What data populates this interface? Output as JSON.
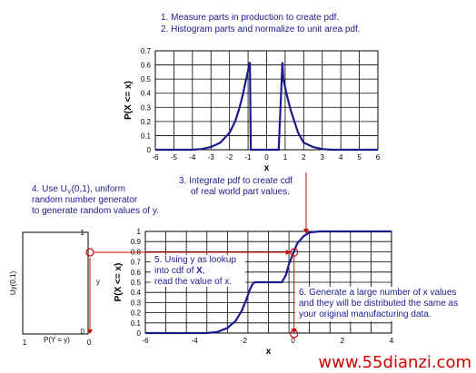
{
  "notes": {
    "n1": "1.  Measure parts in production to create pdf.",
    "n2": "2.  Histogram parts and normalize to unit area pdf.",
    "n3a": "3.  Integrate pdf to create cdf",
    "n3b": "of real world part values.",
    "n4a": "4.  Use U",
    "n4sub": "Y",
    "n4b": "(0,1), uniform",
    "n4c": "random number generator",
    "n4d": "to generate random values of y.",
    "n5a": "5.  Using y as lookup",
    "n5b": "into cdf of ",
    "n5bold": "X",
    "n5c": ",",
    "n5d": "read the value of x.",
    "n6a": "6.  Generate a large number of x values",
    "n6b": "and they will be distributed the same as",
    "n6c": "your original manufacturing data."
  },
  "chart_data": [
    {
      "type": "line",
      "title": "",
      "xlabel": "x",
      "ylabel": "P(X <= x)",
      "xlim": [
        -6,
        6
      ],
      "ylim": [
        0,
        0.7
      ],
      "x_ticks": [
        "-6",
        "-5",
        "-4",
        "-3",
        "-2",
        "-1",
        "0",
        "1",
        "2",
        "3",
        "4",
        "5",
        "6"
      ],
      "y_ticks": [
        "0",
        "0.1",
        "0.2",
        "0.3",
        "0.4",
        "0.5",
        "0.6",
        "0.7"
      ],
      "grid": true,
      "series": [
        {
          "x": [
            -6,
            -4,
            -3.5,
            -3,
            -2.5,
            -2,
            -1.7,
            -1.5,
            -1.3,
            -1.1,
            -0.9,
            -0.85,
            -0.65,
            0.65,
            0.85,
            0.9,
            1.1,
            1.3,
            1.5,
            1.7,
            2,
            2.5,
            3,
            3.5,
            4,
            6
          ],
          "y": [
            0,
            0,
            0.005,
            0.02,
            0.05,
            0.12,
            0.2,
            0.28,
            0.38,
            0.5,
            0.62,
            0,
            0,
            0,
            0.62,
            0.5,
            0.38,
            0.28,
            0.2,
            0.12,
            0.05,
            0.02,
            0.005,
            0,
            0,
            0
          ]
        }
      ]
    },
    {
      "type": "line",
      "title": "",
      "xlabel": "x",
      "ylabel": "P(X <= x)",
      "xlim": [
        -6,
        6
      ],
      "ylim": [
        0,
        1
      ],
      "x_ticks": [
        "-6",
        "-4",
        "-2",
        "0",
        "2",
        "4"
      ],
      "y_ticks": [
        "0",
        "0.1",
        "0.2",
        "0.3",
        "0.4",
        "0.5",
        "0.6",
        "0.7",
        "0.8",
        "0.9",
        "1"
      ],
      "grid": true,
      "series": [
        {
          "x": [
            -6,
            -3,
            -2.5,
            -2,
            -1.6,
            -1.3,
            -1.1,
            -0.9,
            -0.75,
            -0.65,
            0.65,
            0.85,
            1.0,
            1.2,
            1.4,
            1.7,
            2.0,
            2.5,
            3,
            6
          ],
          "y": [
            0,
            0,
            0.01,
            0.05,
            0.12,
            0.22,
            0.32,
            0.43,
            0.49,
            0.5,
            0.5,
            0.57,
            0.68,
            0.78,
            0.88,
            0.95,
            0.99,
            1,
            1,
            1
          ]
        }
      ]
    },
    {
      "type": "other",
      "ylabel": "Uy(0,1)",
      "xlabel": "P(Y = y)",
      "y_ticks": [
        "1",
        "0"
      ],
      "x_ticks": [
        "1",
        "0"
      ],
      "marker_label": "y"
    }
  ],
  "lookup": {
    "y": 0.8,
    "x": 1.25
  },
  "watermark": "www.55dianzi.com"
}
